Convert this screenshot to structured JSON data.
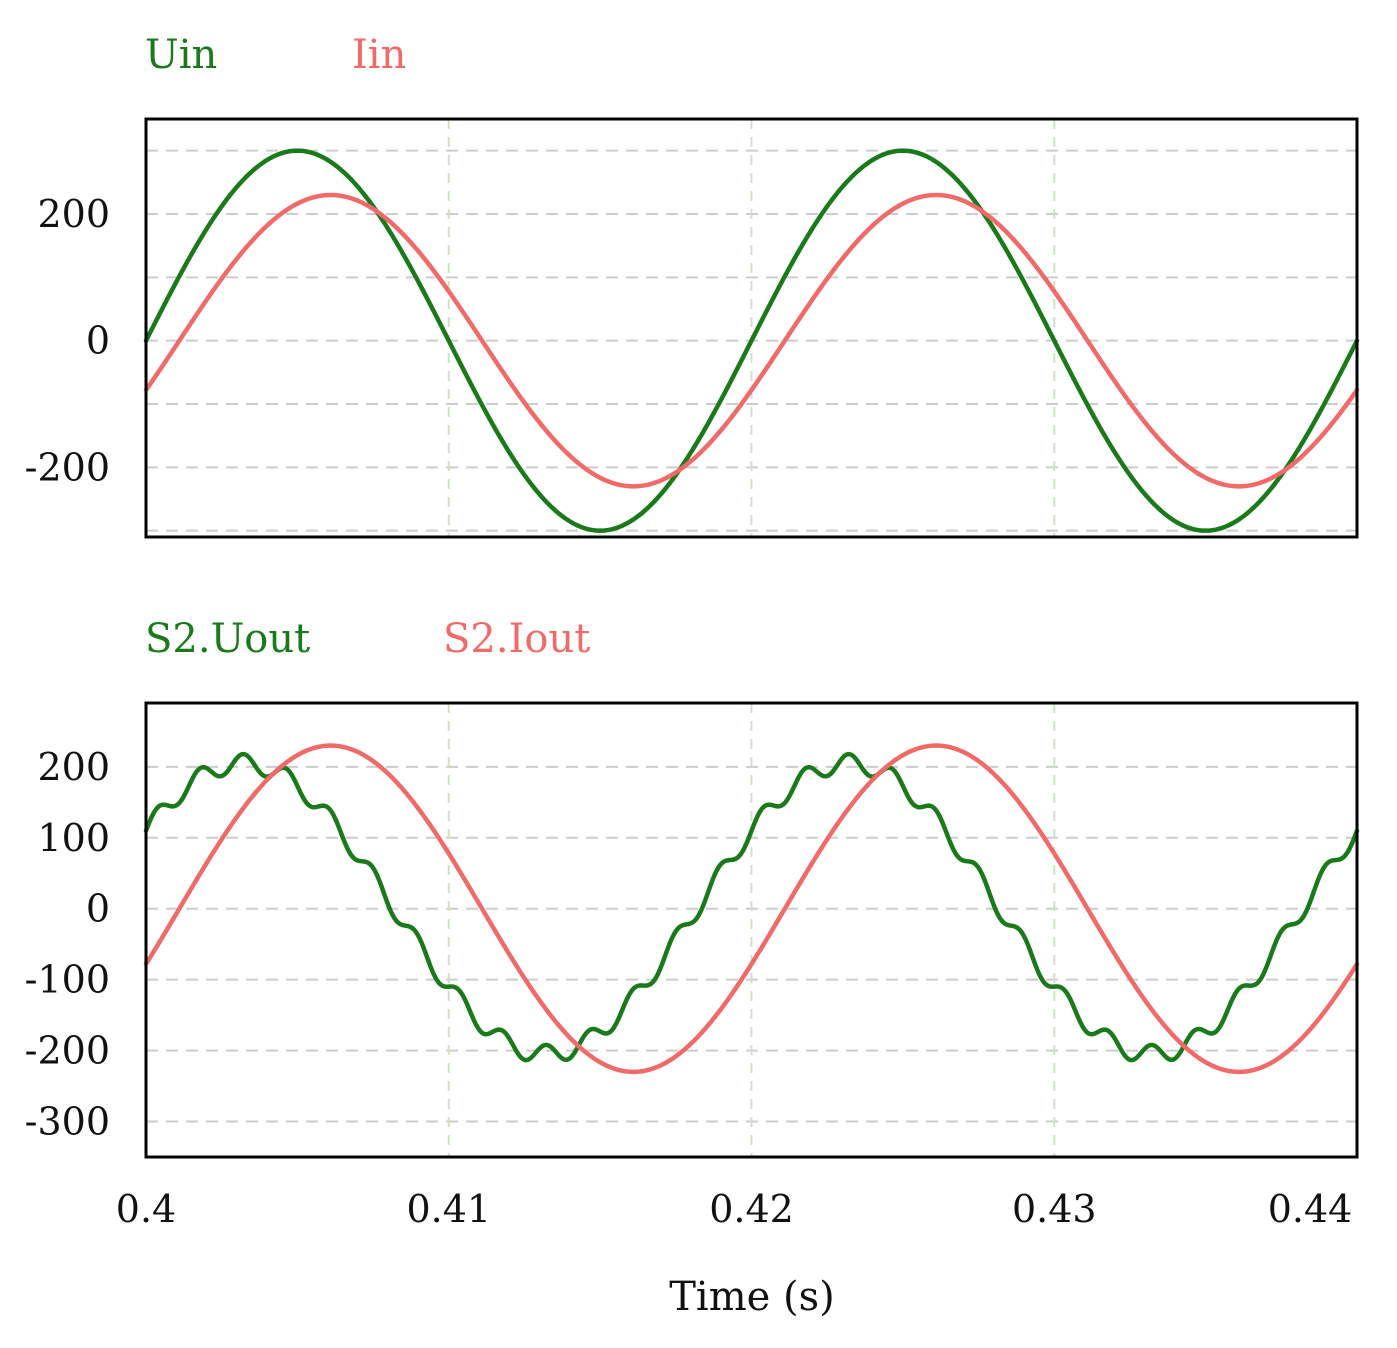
{
  "chart_data": [
    {
      "type": "line",
      "title": "",
      "xlabel": "",
      "ylabel": "",
      "xlim": [
        0.4,
        0.44
      ],
      "ylim": [
        -310,
        350
      ],
      "yticks": [
        200,
        0,
        -200
      ],
      "ytick_labels": [
        "200",
        "0",
        "-200"
      ],
      "hgrid": [
        300,
        200,
        100,
        0,
        -100,
        -200,
        -300
      ],
      "vgrid": [
        0.41,
        0.42,
        0.43
      ],
      "grid": true,
      "legend_position": "top-left",
      "series": [
        {
          "name": "Uin",
          "color": "#1a7a1a",
          "x": [
            0.4,
            0.4025,
            0.405,
            0.4075,
            0.41,
            0.4125,
            0.415,
            0.4175,
            0.42,
            0.4225,
            0.425,
            0.4275,
            0.43,
            0.4325,
            0.435,
            0.4375,
            0.44
          ],
          "values": [
            0,
            212,
            300,
            212,
            0,
            -212,
            -300,
            -212,
            0,
            212,
            300,
            212,
            0,
            -212,
            -300,
            -212,
            0
          ]
        },
        {
          "name": "Iin",
          "color": "#f06a6a",
          "x": [
            0.4,
            0.4018,
            0.4035,
            0.4053,
            0.407,
            0.4088,
            0.4105,
            0.4123,
            0.414,
            0.4158,
            0.4175,
            0.4193,
            0.421,
            0.4228,
            0.4245,
            0.4263,
            0.428,
            0.4298,
            0.4315,
            0.4333,
            0.435,
            0.4368,
            0.4385,
            0.44
          ],
          "values": [
            -80,
            60,
            165,
            225,
            230,
            170,
            65,
            -60,
            -170,
            -228,
            -232,
            -170,
            -60,
            60,
            170,
            228,
            230,
            170,
            60,
            -60,
            -170,
            -230,
            -230,
            -80
          ]
        }
      ]
    },
    {
      "type": "line",
      "title": "",
      "xlabel": "Time (s)",
      "ylabel": "",
      "xlim": [
        0.4,
        0.44
      ],
      "ylim": [
        -350,
        290
      ],
      "xticks": [
        0.4,
        0.41,
        0.42,
        0.43,
        0.44
      ],
      "xtick_labels": [
        "0.4",
        "0.41",
        "0.42",
        "0.43",
        "0.44"
      ],
      "yticks": [
        200,
        100,
        0,
        -100,
        -200,
        -300
      ],
      "ytick_labels": [
        "200",
        "100",
        "0",
        "-100",
        "-200",
        "-300"
      ],
      "hgrid": [
        200,
        100,
        0,
        -100,
        -200,
        -300
      ],
      "vgrid": [
        0.41,
        0.42,
        0.43
      ],
      "grid": true,
      "legend_position": "top-left",
      "series": [
        {
          "name": "S2.Uout",
          "color": "#1a7a1a",
          "amplitude": 205,
          "phase_cycles": 0.09,
          "ripple_amplitude": 13,
          "ripple_cycles_per_period": 14,
          "x": [
            0.4,
            0.4025,
            0.405,
            0.4075,
            0.41,
            0.4125,
            0.415,
            0.4175,
            0.42,
            0.4225,
            0.425,
            0.4275,
            0.43,
            0.4325,
            0.435,
            0.4375,
            0.44
          ],
          "values": [
            55,
            175,
            205,
            150,
            -40,
            -180,
            -215,
            -160,
            40,
            175,
            205,
            150,
            -40,
            -180,
            -210,
            -160,
            45
          ]
        },
        {
          "name": "S2.Iout",
          "color": "#f06a6a",
          "amplitude": 230,
          "phase_cycles": -0.055,
          "x": [
            0.4,
            0.4025,
            0.405,
            0.4075,
            0.41,
            0.4125,
            0.415,
            0.4175,
            0.42,
            0.4225,
            0.425,
            0.4275,
            0.43,
            0.4325,
            0.435,
            0.4375,
            0.44
          ],
          "values": [
            -75,
            120,
            225,
            200,
            40,
            -150,
            -230,
            -190,
            -75,
            120,
            225,
            200,
            40,
            -150,
            -230,
            -190,
            -75
          ]
        }
      ]
    }
  ]
}
